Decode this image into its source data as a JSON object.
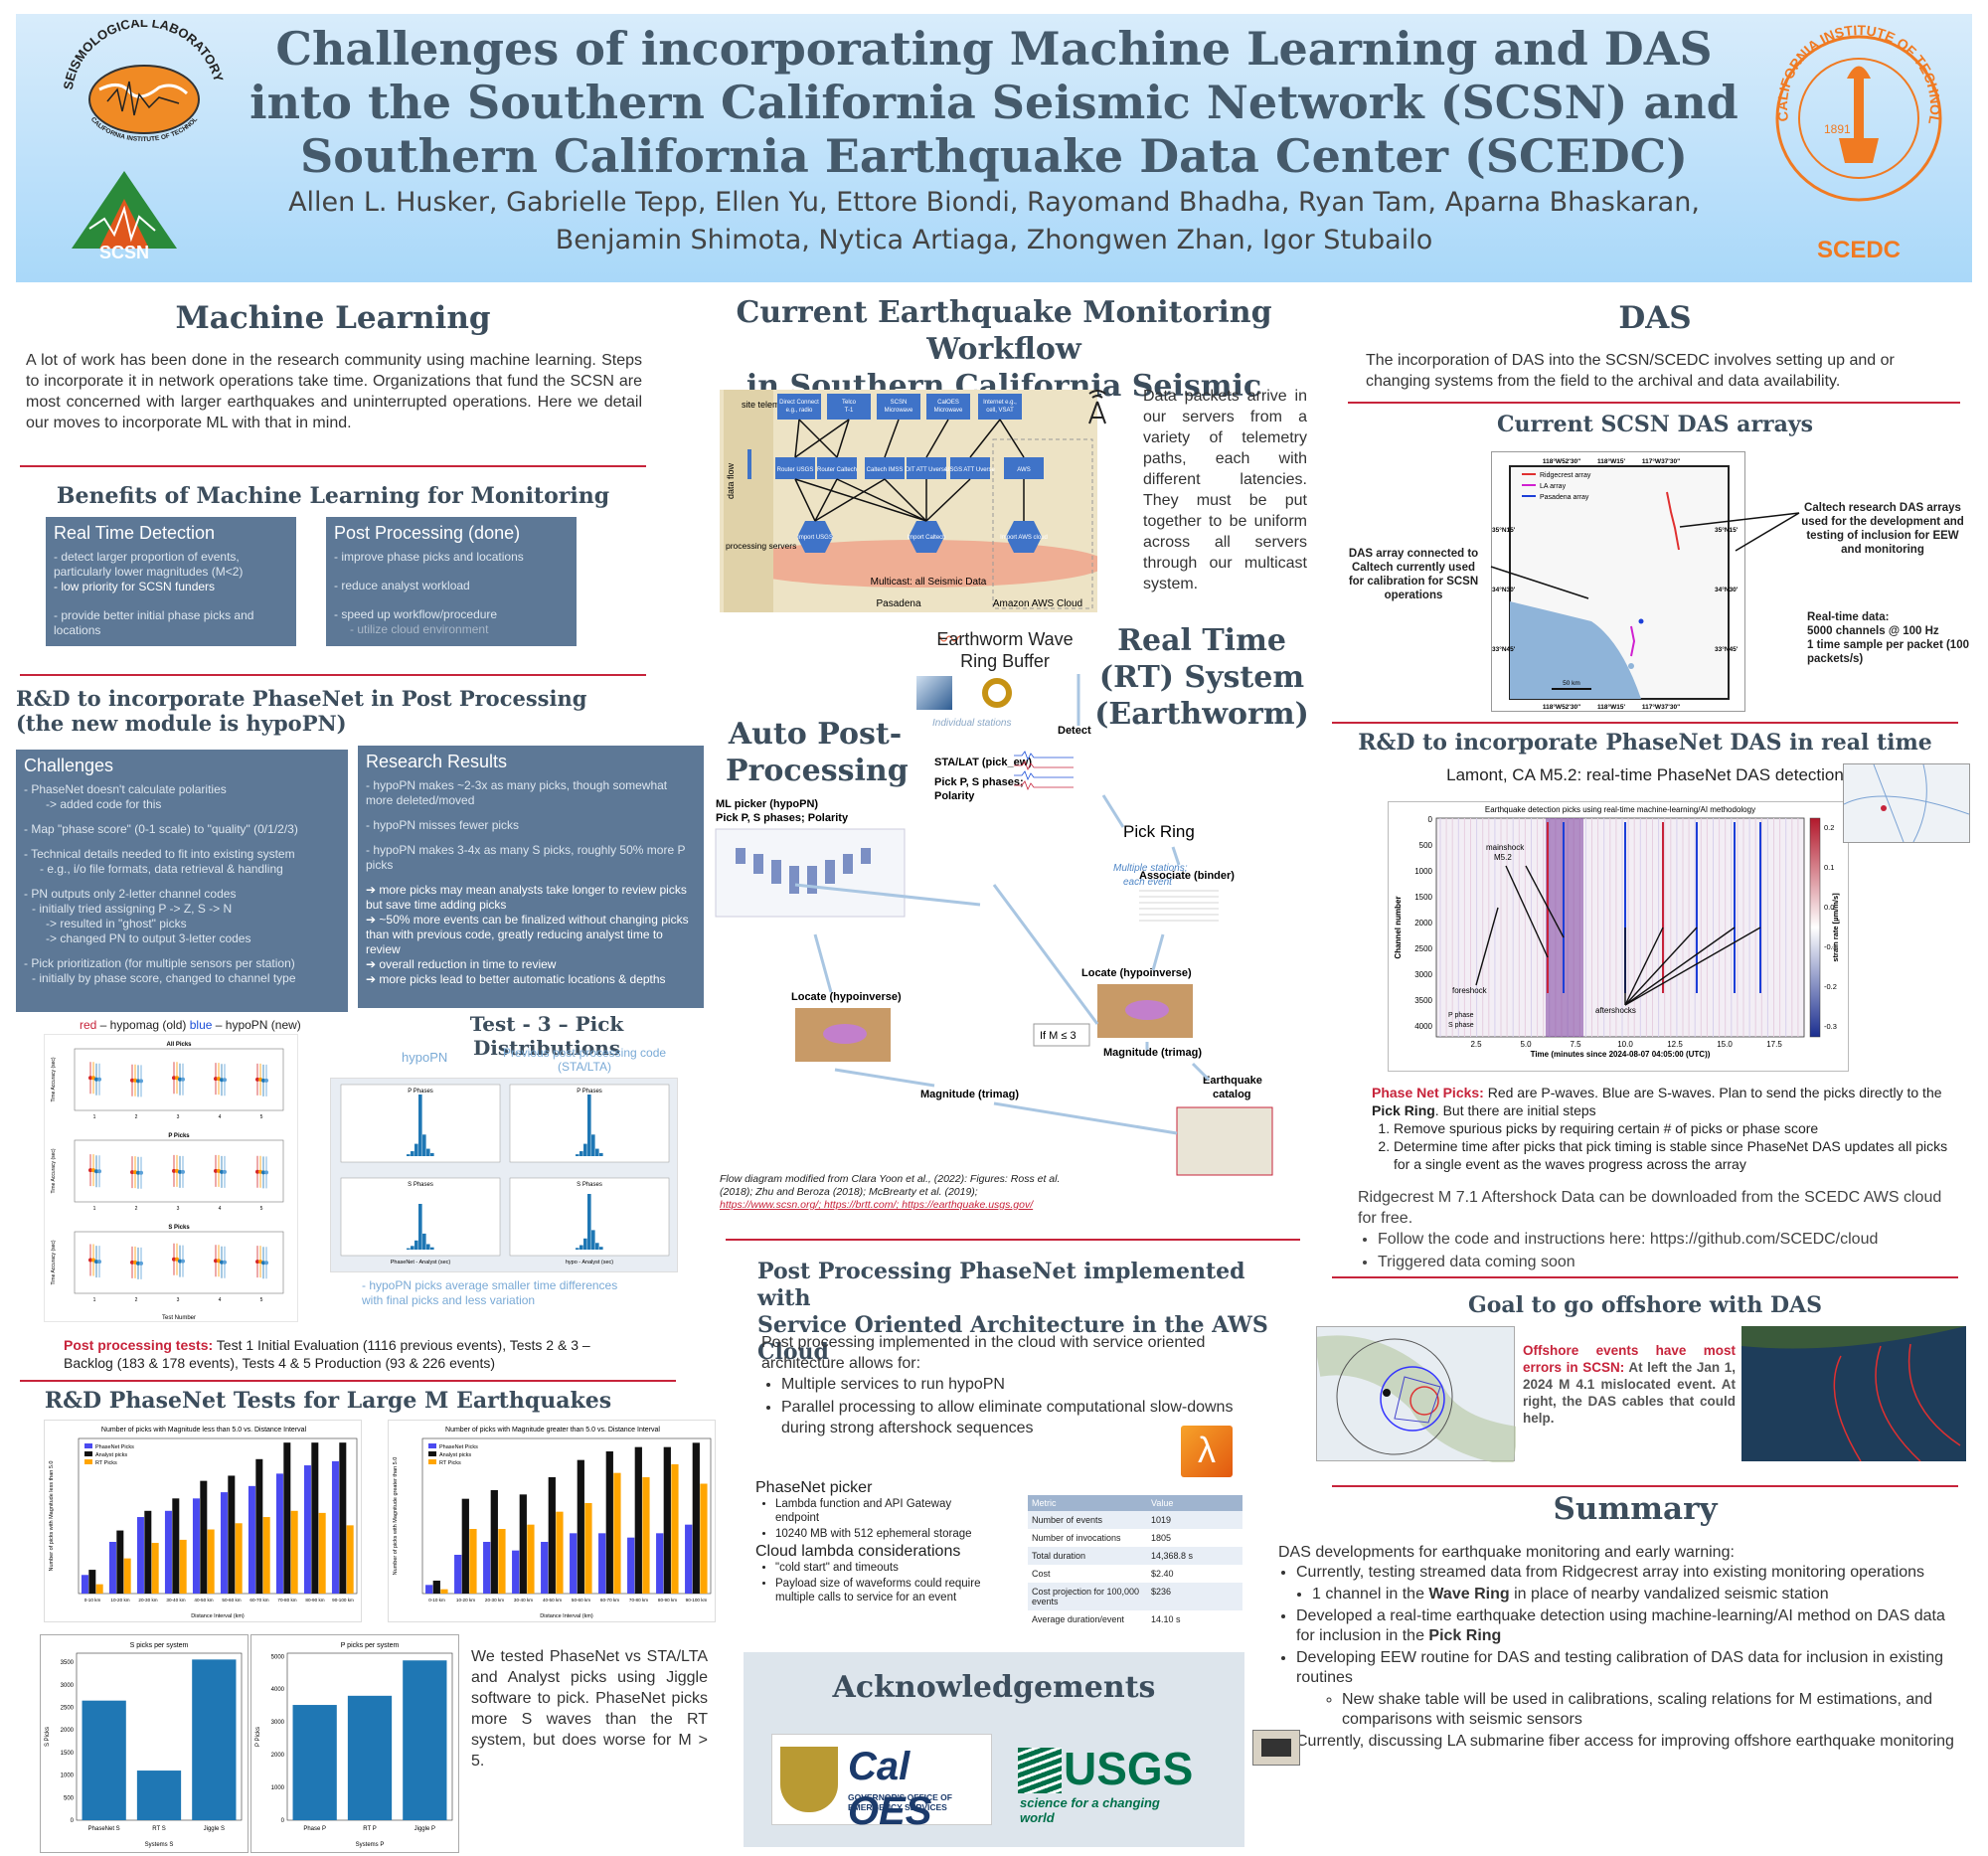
{
  "header": {
    "title": "Challenges of incorporating Machine Learning and DAS into the Southern California Seismic Network (SCSN) and Southern California Earthquake Data Center (SCEDC)",
    "authors": "Allen L. Husker, Gabrielle Tepp, Ellen Yu, Ettore Biondi, Rayomand Bhadha, Ryan Tam, Aparna Bhaskaran, Benjamin Shimota, Nytica Artiaga, Zhongwen Zhan, Igor Stubailo",
    "logo_left_text": "SEISMOLOGICAL LABORATORY",
    "logo_left_sub": "CALIFORNIA INSTITUTE OF TECHNOLOGY",
    "logo_scsn": "SCSN",
    "logo_right_text": "CALIFORNIA INSTITUTE OF TECHNOLOGY",
    "logo_right_year": "1891",
    "logo_scedc": "SCEDC"
  },
  "ml": {
    "title": "Machine Learning",
    "intro": "A lot of work has been done in the research community using machine learning. Steps to incorporate it in network operations take time. Organizations that fund the SCSN are most concerned with larger earthquakes and uninterrupted operations. Here we detail our moves to incorporate ML with that in mind.",
    "benefits_title": "Benefits of Machine Learning for Monitoring",
    "rt_title": "Real Time Detection",
    "rt_items": [
      "- detect larger proportion of events, particularly lower magnitudes (M<2)",
      "- low priority for SCSN funders",
      "- provide better initial phase picks and locations"
    ],
    "pp_title": "Post Processing (done)",
    "pp_items": [
      "- improve phase picks and locations",
      "- reduce analyst workload",
      "- speed up workflow/procedure",
      "- utilize cloud environment"
    ],
    "rd_title_1": "R&D to incorporate PhaseNet in Post Processing",
    "rd_title_2": "(the new module is hypoPN)",
    "challenges_title": "Challenges",
    "challenges": [
      "- PhaseNet doesn't calculate polarities",
      "-> added code for this",
      "- Map \"phase score\" (0-1 scale) to \"quality\" (0/1/2/3)",
      "- Technical details needed to fit into existing system",
      "- e.g., i/o file formats, data retrieval & handling",
      "- PN outputs only 2-letter channel codes",
      "- initially tried assigning P -> Z, S -> N",
      "-> resulted in \"ghost\" picks",
      "-> changed PN to output 3-letter codes",
      "- Pick prioritization (for multiple sensors per station)",
      "- initially by phase score, changed to channel type"
    ],
    "results_title": "Research Results",
    "results": [
      "- hypoPN makes ~2-3x as many picks, though somewhat more deleted/moved",
      "- hypoPN misses fewer picks",
      "- hypoPN makes 3-4x as many S picks, roughly 50% more P picks"
    ],
    "results_arrows": [
      "more picks may mean analysts take longer to review picks but save time adding picks",
      "~50% more events can be finalized without changing picks than with previous code, greatly reducing analyst time to review",
      "overall reduction in time to review",
      "more picks lead to better automatic locations & depths"
    ],
    "legend_red": "red",
    "legend_mid": " – hypomag (old) ",
    "legend_blue": "blue",
    "legend_end": " – hypoPN (new)",
    "err_titles": [
      "All Picks",
      "P Picks",
      "S Picks"
    ],
    "err_xlabel": "Test Number",
    "err_ylabel": "Time Accuracy (sec)",
    "test3_title": "Test - 3 – Pick Distributions",
    "hypoPN_label": "hypoPN",
    "prev_label": "Previous post-processing code (STA/LTA)",
    "hist_titles": [
      "P Phases",
      "P Phases",
      "S Phases",
      "S Phases"
    ],
    "hist_xl": [
      "PhaseNet - Analyst (sec)",
      "hypo - Analyst (sec)"
    ],
    "hist_note": "- hypoPN picks average smaller time differences with final picks and less variation",
    "pp_tests_label": "Post processing tests:",
    "pp_tests": " Test 1 Initial Evaluation (1116 previous events), Tests 2 & 3 – Backlog (183 & 178 events), Tests 4 & 5 Production (93 & 226 events)",
    "large_title": "R&D PhaseNet Tests for Large M Earthquakes",
    "large_text": "We tested PhaseNet vs STA/LTA and Analyst picks using Jiggle software to pick. PhaseNet picks more S waves than the RT system, but does worse for M > 5."
  },
  "chart_data": [
    {
      "type": "bar",
      "title": "Number of picks with Magnitude less than 5.0 vs. Distance Interval",
      "xlabel": "Distance Interval (km)",
      "ylabel": "Number of picks with Magnitude less than 5.0",
      "categories": [
        "0-10 km",
        "10-20 km",
        "20-30 km",
        "30-40 km",
        "40-50 km",
        "50-60 km",
        "60-70 km",
        "70-80 km",
        "80-90 km",
        "90-100 km"
      ],
      "ylim": [
        0,
        750
      ],
      "series": [
        {
          "name": "PhaseNet Picks",
          "color": "#4a4af0",
          "values": [
            90,
            250,
            370,
            400,
            460,
            490,
            520,
            580,
            620,
            640
          ]
        },
        {
          "name": "Analyst picks",
          "color": "#111111",
          "values": [
            115,
            305,
            400,
            460,
            545,
            570,
            650,
            730,
            730,
            730
          ]
        },
        {
          "name": "RT Picks",
          "color": "#ffa500",
          "values": [
            45,
            170,
            245,
            260,
            310,
            340,
            370,
            400,
            390,
            330
          ]
        }
      ]
    },
    {
      "type": "bar",
      "title": "Number of picks with Magnitude greater than 5.0 vs. Distance Interval",
      "xlabel": "Distance Interval (km)",
      "ylabel": "Number of picks with Magnitude greater than 5.0",
      "categories": [
        "0-10 km",
        "10-20 km",
        "20-30 km",
        "30-40 km",
        "40-50 km",
        "50-60 km",
        "60-70 km",
        "70-80 km",
        "80-90 km",
        "90-100 km"
      ],
      "ylim": [
        0,
        360
      ],
      "series": [
        {
          "name": "PhaseNet Picks",
          "color": "#4a4af0",
          "values": [
            20,
            90,
            120,
            100,
            120,
            140,
            140,
            130,
            140,
            160
          ]
        },
        {
          "name": "Analyst picks",
          "color": "#111111",
          "values": [
            30,
            220,
            240,
            230,
            270,
            310,
            330,
            340,
            340,
            350
          ]
        },
        {
          "name": "RT Picks",
          "color": "#ffa500",
          "values": [
            10,
            150,
            150,
            160,
            190,
            210,
            280,
            270,
            300,
            255
          ]
        }
      ]
    },
    {
      "type": "bar",
      "title": "S picks per system",
      "xlabel": "Systems S",
      "ylabel": "S Picks",
      "categories": [
        "PhaseNet S",
        "RT S",
        "Jiggle S"
      ],
      "values": [
        2650,
        1100,
        3560
      ],
      "ylim": [
        0,
        3700
      ]
    },
    {
      "type": "bar",
      "title": "P picks per system",
      "xlabel": "Systems P",
      "ylabel": "P Picks",
      "categories": [
        "Phase P",
        "RT P",
        "Jiggle P"
      ],
      "values": [
        3520,
        3800,
        4880
      ],
      "ylim": [
        0,
        5100
      ]
    }
  ],
  "workflow": {
    "title_1": "Current Earthquake Monitoring Workflow",
    "title_2": "in Southern California Seismic Network",
    "packets_text": "Data packets arrive in our servers from a variety of telemetry paths, each with different latencies. They must be put together to be uniform across all servers through our multicast system.",
    "telemetry": [
      "Direct Connect e.g., radio",
      "Telco T-1",
      "SCSN Microwave",
      "CalOES Microwave",
      "Internet e.g., cell, VSAT"
    ],
    "routers": [
      "Router USGS",
      "Router Caltech",
      "Caltech IMSS",
      "DIT ATT Uverse",
      "USGS ATT Uverse",
      "AWS"
    ],
    "imports": [
      "Import USGS",
      "Import Caltech",
      "Import AWS cloud"
    ],
    "site_telemetry": "site telemetry",
    "data_flow": "data flow",
    "processing_servers": "processing servers",
    "multicast": "Multicast: all Seismic Data",
    "pasadena": "Pasadena",
    "aws_cloud": "Amazon AWS Cloud",
    "earthworm": "Earthworm Wave Ring Buffer",
    "rt_title": "Real Time (RT) System (Earthworm)",
    "auto_title": "Auto Post-Processing",
    "individual": "Individual stations",
    "detect": "Detect",
    "sta_lta": "STA/LAT (pick_ew)",
    "pick_ps": "Pick P, S phases; Polarity",
    "ml_picker": "ML picker (hypoPN)",
    "ml_pick": "Pick P, S phases; Polarity",
    "pick_ring": "Pick Ring",
    "multi": "Multiple stations; each event",
    "associate": "Associate (binder)",
    "locate_rt": "Locate (hypoinverse)",
    "locate_pp": "Locate (hypoinverse)",
    "if_m": "If M ≤ 3",
    "magnitude_rt": "Magnitude (trimag)",
    "magnitude_pp": "Magnitude (trimag)",
    "catalog": "Earthquake catalog",
    "credit": "Flow diagram modified from Clara Yoon et al., (2022): Figures: Ross et al. (2018); Zhu and Beroza (2018); McBrearty et al. (2019);",
    "links": "https://www.scsn.org/;  https://brtt.com/; https://earthquake.usgs.gov/"
  },
  "aws": {
    "title_1": "Post Processing PhaseNet implemented with",
    "title_2": "Service Oriented Architecture in the AWS Cloud",
    "intro": "Post processing implemented in the cloud with service oriented architecture allows for:",
    "bullets": [
      "Multiple services to run hypoPN",
      "Parallel processing to allow eliminate computational slow-downs during strong aftershock sequences"
    ],
    "picker_title": "PhaseNet picker",
    "picker_items": [
      "Lambda function and API Gateway endpoint",
      "10240 MB with 512 ephemeral storage"
    ],
    "lambda_title": "Cloud lambda considerations",
    "lambda_items": [
      "\"cold start\" and timeouts",
      "Payload size of waveforms could require multiple calls to service for an event"
    ],
    "table_head": [
      "Metric",
      "Value"
    ],
    "table_rows": [
      [
        "Number of events",
        "1019"
      ],
      [
        "Number of invocations",
        "1805"
      ],
      [
        "Total duration",
        "14,368.8 s"
      ],
      [
        "Cost",
        "$2.40"
      ],
      [
        "Cost projection for 100,000 events",
        "$236"
      ],
      [
        "Average duration/event",
        "14.10 s"
      ]
    ]
  },
  "ack": {
    "title": "Acknowledgements",
    "caloes": "Cal OES",
    "caloes_sub": "GOVERNOR'S OFFICE OF EMERGENCY SERVICES",
    "usgs": "USGS",
    "usgs_sub": "science for a changing world"
  },
  "das": {
    "title": "DAS",
    "intro": "The incorporation of DAS into the SCSN/SCEDC involves setting up and or changing systems from the field to the archival and data availability.",
    "arrays_title": "Current SCSN DAS arrays",
    "map_legend": [
      "Ridgecrest array",
      "LA array",
      "Pasadena array"
    ],
    "map_top_ticks": [
      "118°W52'30\"",
      "118°W15'",
      "117°W37'30\""
    ],
    "map_lat_ticks": [
      "35°N15'",
      "34°N30'",
      "33°N45'"
    ],
    "map_scale": "50 km",
    "left_note": "DAS array connected to Caltech currently used for calibration for SCSN operations",
    "right_note": "Caltech research DAS arrays used for the development and testing of inclusion for EEW and monitoring",
    "realtime": "Real-time data:",
    "realtime_2": "5000 channels @ 100 Hz",
    "realtime_3": "1 time sample per packet (100 packets/s)",
    "rd_title": "R&D to incorporate PhaseNet DAS in real time",
    "lamont": "Lamont, CA M5.2: real-time PhaseNet DAS detection",
    "wf_title": "Earthquake detection picks using real-time machine-learning/AI methodology",
    "wf_xlabel": "Time (minutes since 2024-08-07 04:05:00 (UTC))",
    "wf_ylabel": "Channel number",
    "wf_cbar": "strain rate [µm/m/s]",
    "wf_yticks": [
      "0",
      "500",
      "1000",
      "1500",
      "2000",
      "2500",
      "3000",
      "3500",
      "4000"
    ],
    "wf_xticks": [
      "2.5",
      "5.0",
      "7.5",
      "10.0",
      "12.5",
      "15.0",
      "17.5"
    ],
    "wf_cticks": [
      "0.2",
      "0.1",
      "0.0",
      "-0.1",
      "-0.2",
      "-0.3"
    ],
    "mainshock": "mainshock M5.2",
    "foreshock": "foreshock",
    "aftershocks": "aftershocks",
    "p_phase": "P phase",
    "s_phase": "S phase",
    "pn_label": "Phase Net Picks:",
    "pn_text": " Red are P-waves. Blue are S-waves. Plan to send the picks directly to the ",
    "pick_ring": "Pick Ring",
    "pn_text_2": ". But there are initial steps",
    "steps": [
      "Remove spurious picks by requiring certain # of picks or phase score",
      "Determine time after picks that pick timing is stable since PhaseNet DAS updates all picks for a single event as the waves progress across the array"
    ],
    "ridgecrest": "Ridgecrest M 7.1 Aftershock Data can be downloaded from the SCEDC AWS cloud for free.",
    "ridge_bullets": [
      "Follow the code and instructions here: https://github.com/SCEDC/cloud",
      "Triggered data coming soon"
    ],
    "offshore_title": "Goal to go offshore with DAS",
    "offshore_red": "Offshore events have most errors in SCSN:",
    "offshore_text": " At left the Jan 1, 2024 M 4.1 mislocated event. At right, the DAS cables that could help."
  },
  "summary": {
    "title": "Summary",
    "intro": "DAS developments for earthquake monitoring and early warning:",
    "b1": "Currently, testing streamed data from Ridgecrest array into existing monitoring operations",
    "b1a_pre": "1 channel in the ",
    "b1a_bold": "Wave Ring",
    "b1a_post": " in place of nearby vandalized seismic station",
    "b2_pre": "Developed a real-time earthquake detection using machine-learning/AI method on DAS data for inclusion in the ",
    "b2_bold": "Pick Ring",
    "b3": "Developing EEW routine for DAS and testing calibration of DAS data for inclusion in existing routines",
    "b3a": "New shake table will be used in calibrations, scaling relations for M estimations, and comparisons with seismic sensors",
    "b4": "Currently, discussing LA submarine fiber access for improving offshore earthquake monitoring"
  }
}
